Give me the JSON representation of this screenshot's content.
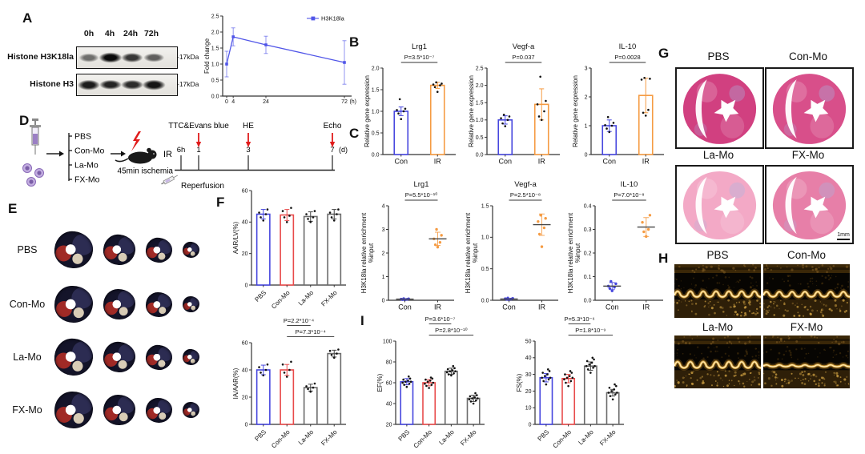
{
  "colors": {
    "blue": "#4646DE",
    "orange": "#F59B42",
    "red": "#E84B4B",
    "gray_bar": "#6B6B6B",
    "sig_red": "#E01B1B",
    "purple": "#8A6BB8",
    "echo_gold": "#E0A93E"
  },
  "panels": {
    "A": {
      "label": "A",
      "lanes": [
        "0h",
        "4h",
        "24h",
        "72h"
      ],
      "blots": [
        {
          "name": "Histone H3K18la",
          "marker": "-17kDa",
          "intensities": [
            0.55,
            1,
            0.8,
            0.62
          ]
        },
        {
          "name": "Histone H3",
          "marker": "-17kDa",
          "intensities": [
            0.92,
            0.88,
            0.85,
            0.95
          ]
        }
      ]
    },
    "B": {
      "label": "B"
    },
    "C": {
      "label": "C"
    },
    "D": {
      "label": "D",
      "groups": [
        "PBS",
        "Con-Mo",
        "La-Mo",
        "FX-Mo"
      ],
      "ischemia": "45min ischemia",
      "ir": "IR",
      "events": [
        "TTC&Evans blue",
        "HE",
        "Echo"
      ],
      "timepoints": [
        "6h",
        "1",
        "3",
        "7"
      ],
      "unit": "(d)",
      "reperfusion": "Reperfusion"
    },
    "E": {
      "label": "E",
      "rows": [
        "PBS",
        "Con-Mo",
        "La-Mo",
        "FX-Mo"
      ]
    },
    "F": {
      "label": "F"
    },
    "G": {
      "label": "G",
      "top_labels": [
        "PBS",
        "Con-Mo"
      ],
      "bottom_labels": [
        "La-Mo",
        "FX-Mo"
      ],
      "scale_bar": "1mm"
    },
    "H": {
      "label": "H",
      "top_labels": [
        "PBS",
        "Con-Mo"
      ],
      "bottom_labels": [
        "La-Mo",
        "FX-Mo"
      ]
    },
    "I": {
      "label": "I"
    }
  },
  "chart_data": [
    {
      "id": "fold_change",
      "type": "line",
      "x": [
        0,
        4,
        24,
        72
      ],
      "values": [
        1.0,
        1.85,
        1.6,
        1.05
      ],
      "errors": [
        0.4,
        0.28,
        0.27,
        0.68
      ],
      "xlim": [
        0,
        72
      ],
      "xticks": [
        0,
        4,
        24,
        72
      ],
      "xtick_labels": [
        "0",
        "4",
        "24",
        "72"
      ],
      "xunit": "(h)",
      "ylim": [
        0,
        2.5
      ],
      "yticks": [
        0,
        0.5,
        1,
        1.5,
        2,
        2.5
      ],
      "ytick_labels": [
        "0.0",
        "0.5",
        "1.0",
        "1.5",
        "2.0",
        "2.5"
      ],
      "ylabel": "Fold change",
      "legend": "H3K18la",
      "color": "#5055E8"
    },
    {
      "id": "b_lrg1",
      "type": "bar",
      "title": "Lrg1",
      "p": "P=3.5*10⁻⁷",
      "categories": [
        "Con",
        "IR"
      ],
      "values": [
        1.0,
        1.6
      ],
      "errors": [
        0.1,
        0.07
      ],
      "points": [
        [
          0.82,
          0.95,
          1.0,
          1.03,
          1.06,
          1.28
        ],
        [
          1.45,
          1.56,
          1.6,
          1.62,
          1.64,
          1.67
        ]
      ],
      "bar_colors": [
        "#4646DE",
        "#F59B42"
      ],
      "point_color": "#111111",
      "ylim": [
        0,
        2
      ],
      "yticks": [
        0,
        0.5,
        1,
        1.5,
        2
      ],
      "ytick_labels": [
        "0.0",
        "0.5",
        "1.0",
        "1.5",
        "2.0"
      ],
      "ylabel": "Relative gene expression"
    },
    {
      "id": "b_vegfa",
      "type": "bar",
      "title": "Vegf-a",
      "p": "P=0.037",
      "categories": [
        "Con",
        "IR"
      ],
      "values": [
        1.0,
        1.45
      ],
      "errors": [
        0.12,
        0.45
      ],
      "points": [
        [
          0.82,
          0.9,
          1.0,
          1.05,
          1.1,
          1.15
        ],
        [
          1.0,
          1.1,
          1.25,
          1.45,
          1.55,
          2.25
        ]
      ],
      "bar_colors": [
        "#4646DE",
        "#F59B42"
      ],
      "point_color": "#111111",
      "ylim": [
        0,
        2.5
      ],
      "yticks": [
        0,
        0.5,
        1,
        1.5,
        2,
        2.5
      ],
      "ytick_labels": [
        "0.0",
        "0.5",
        "1.0",
        "1.5",
        "2.0",
        "2.5"
      ],
      "ylabel": "Relative gene expression"
    },
    {
      "id": "b_il10",
      "type": "bar",
      "title": "IL-10",
      "p": "P=0.0028",
      "categories": [
        "Con",
        "IR"
      ],
      "values": [
        1.0,
        2.05
      ],
      "errors": [
        0.2,
        0.6
      ],
      "points": [
        [
          0.78,
          0.9,
          1.0,
          1.02,
          1.1,
          1.3
        ],
        [
          1.35,
          1.45,
          1.55,
          2.6,
          2.63,
          2.66
        ]
      ],
      "bar_colors": [
        "#4646DE",
        "#F59B42"
      ],
      "point_color": "#111111",
      "ylim": [
        0,
        3
      ],
      "yticks": [
        0,
        1,
        2,
        3
      ],
      "ytick_labels": [
        "0",
        "1",
        "2",
        "3"
      ],
      "ylabel": "Relative gene expression"
    },
    {
      "id": "c_lrg1",
      "type": "scatter",
      "title": "Lrg1",
      "p": "P=5.5*10⁻¹⁰",
      "categories": [
        "Con",
        "IR"
      ],
      "groups": [
        {
          "points": [
            0.02,
            0.03,
            0.04,
            0.05,
            0.06,
            0.07
          ],
          "mean": 0.05,
          "err": 0.02,
          "color": "#4646DE"
        },
        {
          "points": [
            2.25,
            2.35,
            2.45,
            2.6,
            2.75,
            3.0
          ],
          "mean": 2.6,
          "err": 0.28,
          "color": "#F59B42"
        }
      ],
      "ylim": [
        0,
        4
      ],
      "yticks": [
        0,
        1,
        2,
        3,
        4
      ],
      "ytick_labels": [
        "0",
        "1",
        "2",
        "3",
        "4"
      ],
      "ylabel": "H3K18la relative enrichment",
      "ylabel2": "%input"
    },
    {
      "id": "c_vegfa",
      "type": "scatter",
      "title": "Vegf-a",
      "p": "P=2.5*10⁻⁸",
      "categories": [
        "Con",
        "IR"
      ],
      "groups": [
        {
          "points": [
            0.01,
            0.015,
            0.02,
            0.025,
            0.03,
            0.035
          ],
          "mean": 0.02,
          "err": 0.01,
          "color": "#4646DE"
        },
        {
          "points": [
            0.85,
            1.05,
            1.15,
            1.25,
            1.3,
            1.35
          ],
          "mean": 1.2,
          "err": 0.17,
          "color": "#F59B42"
        }
      ],
      "ylim": [
        0,
        1.5
      ],
      "yticks": [
        0,
        0.5,
        1,
        1.5
      ],
      "ytick_labels": [
        "0.0",
        "0.5",
        "1.0",
        "1.5"
      ],
      "ylabel": "H3K18la relative enrichment",
      "ylabel2": "%input"
    },
    {
      "id": "c_il10",
      "type": "scatter",
      "title": "IL-10",
      "p": "P=7.0*10⁻⁸",
      "categories": [
        "Con",
        "IR"
      ],
      "groups": [
        {
          "points": [
            0.04,
            0.05,
            0.055,
            0.06,
            0.07,
            0.08
          ],
          "mean": 0.06,
          "err": 0.015,
          "color": "#4646DE"
        },
        {
          "points": [
            0.27,
            0.29,
            0.3,
            0.33,
            0.36
          ],
          "mean": 0.31,
          "err": 0.04,
          "color": "#F59B42"
        }
      ],
      "ylim": [
        0,
        0.4
      ],
      "yticks": [
        0,
        0.1,
        0.2,
        0.3,
        0.4
      ],
      "ytick_labels": [
        "0.0",
        "0.1",
        "0.2",
        "0.3",
        "0.4"
      ],
      "ylabel": "H3K18la relative enrichment",
      "ylabel2": "%input"
    },
    {
      "id": "f_aar",
      "type": "bar",
      "categories": [
        "PBS",
        "Con-Mo",
        "La-Mo",
        "FX-Mo"
      ],
      "values": [
        45,
        44.5,
        43.5,
        45
      ],
      "errors": [
        3,
        3.5,
        3,
        3
      ],
      "points": [
        [
          41,
          43,
          45,
          46,
          48
        ],
        [
          40,
          43,
          44,
          47,
          49
        ],
        [
          40,
          42,
          43,
          45,
          47
        ],
        [
          41,
          43,
          45,
          46,
          48
        ]
      ],
      "bar_colors": [
        "#4646DE",
        "#E84B4B",
        "#6B6B6B",
        "#6B6B6B"
      ],
      "point_color": "#111111",
      "rotate_x": true,
      "ylim": [
        0,
        60
      ],
      "yticks": [
        0,
        20,
        40,
        60
      ],
      "ytick_labels": [
        "0",
        "20",
        "40",
        "60"
      ],
      "ylabel": "AAR/LV(%)"
    },
    {
      "id": "f_ia",
      "type": "bar",
      "categories": [
        "PBS",
        "Con-Mo",
        "La-Mo",
        "FX-Mo"
      ],
      "values": [
        40,
        40,
        27,
        52
      ],
      "errors": [
        3.5,
        4,
        2.5,
        2.5
      ],
      "points": [
        [
          36,
          38,
          40,
          42,
          44
        ],
        [
          35,
          38,
          40,
          44,
          46
        ],
        [
          24,
          26,
          27,
          28,
          30
        ],
        [
          49,
          51,
          52,
          54,
          55
        ]
      ],
      "bar_colors": [
        "#4646DE",
        "#E84B4B",
        "#6B6B6B",
        "#6B6B6B"
      ],
      "point_color": "#111111",
      "rotate_x": true,
      "sig": [
        {
          "text": "P=2.2*10⁻⁴",
          "a": 1,
          "b": 2
        },
        {
          "text": "P=7.3*10⁻⁴",
          "a": 1,
          "b": 3
        }
      ],
      "ylim": [
        0,
        60
      ],
      "yticks": [
        0,
        20,
        40,
        60
      ],
      "ytick_labels": [
        "0",
        "20",
        "40",
        "60"
      ],
      "ylabel": "IA/AAR(%)"
    },
    {
      "id": "i_ef",
      "type": "bar",
      "categories": [
        "PBS",
        "Con-Mo",
        "La-Mo",
        "FX-Mo"
      ],
      "values": [
        61,
        60,
        71,
        45
      ],
      "errors": [
        3,
        3,
        3,
        3
      ],
      "points": [
        [
          56,
          58,
          59,
          60,
          61,
          61,
          62,
          63,
          64,
          66
        ],
        [
          55,
          57,
          58,
          59,
          60,
          61,
          62,
          63,
          64,
          65
        ],
        [
          67,
          68,
          69,
          70,
          71,
          71,
          72,
          73,
          74,
          76
        ],
        [
          40,
          42,
          43,
          44,
          45,
          45,
          46,
          47,
          48,
          50
        ]
      ],
      "bar_colors": [
        "#4646DE",
        "#E84B4B",
        "#6B6B6B",
        "#6B6B6B"
      ],
      "point_color": "#111111",
      "rotate_x": true,
      "sig": [
        {
          "text": "P=3.6*10⁻⁷",
          "a": 1,
          "b": 2
        },
        {
          "text": "P=2.8*10⁻¹⁰",
          "a": 1,
          "b": 3
        }
      ],
      "ylim": [
        20,
        100
      ],
      "yticks": [
        20,
        40,
        60,
        80,
        100
      ],
      "ytick_labels": [
        "20",
        "40",
        "60",
        "80",
        "100"
      ],
      "ylabel": "EF(%)"
    },
    {
      "id": "i_fs",
      "type": "bar",
      "categories": [
        "PBS",
        "Con-Mo",
        "La-Mo",
        "FX-Mo"
      ],
      "values": [
        28,
        27.5,
        35,
        19
      ],
      "errors": [
        2.5,
        2.5,
        2.5,
        2
      ],
      "points": [
        [
          24,
          26,
          27,
          28,
          28,
          29,
          30,
          31,
          32,
          33
        ],
        [
          23,
          25,
          26,
          27,
          28,
          28,
          29,
          30,
          31,
          32
        ],
        [
          31,
          33,
          34,
          35,
          35,
          36,
          37,
          38,
          39,
          40
        ],
        [
          15,
          17,
          18,
          19,
          19,
          20,
          21,
          22,
          23,
          24
        ]
      ],
      "bar_colors": [
        "#4646DE",
        "#E84B4B",
        "#6B6B6B",
        "#6B6B6B"
      ],
      "point_color": "#111111",
      "rotate_x": true,
      "sig": [
        {
          "text": "P=5.3*10⁻⁶",
          "a": 1,
          "b": 2
        },
        {
          "text": "P=1.8*10⁻⁹",
          "a": 1,
          "b": 3
        }
      ],
      "ylim": [
        0,
        50
      ],
      "yticks": [
        0,
        10,
        20,
        30,
        40,
        50
      ],
      "ytick_labels": [
        "0",
        "10",
        "20",
        "30",
        "40",
        "50"
      ],
      "ylabel": "FS(%)"
    }
  ]
}
